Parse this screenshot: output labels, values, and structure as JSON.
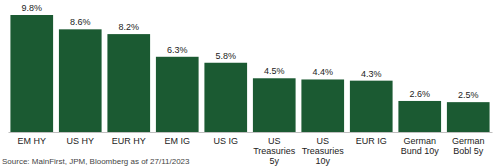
{
  "chart_data": {
    "type": "bar",
    "categories": [
      "EM HY",
      "US HY",
      "EUR HY",
      "EM IG",
      "US IG",
      "US Treasuries 5y",
      "US Treasuries 10y",
      "EUR IG",
      "German Bund 10y",
      "German Bobl 5y"
    ],
    "values": [
      9.8,
      8.6,
      8.2,
      6.3,
      5.8,
      4.5,
      4.4,
      4.3,
      2.6,
      2.5
    ],
    "value_labels": [
      "9.8%",
      "8.6%",
      "8.2%",
      "6.3%",
      "5.8%",
      "4.5%",
      "4.4%",
      "4.3%",
      "2.6%",
      "2.5%"
    ],
    "color": "#1b5a32",
    "data_labels": true,
    "tick_labels": "x",
    "grid": false,
    "annotations": [
      "Source: MainFirst, JPM, Bloomberg as of 27/11/2023"
    ]
  }
}
